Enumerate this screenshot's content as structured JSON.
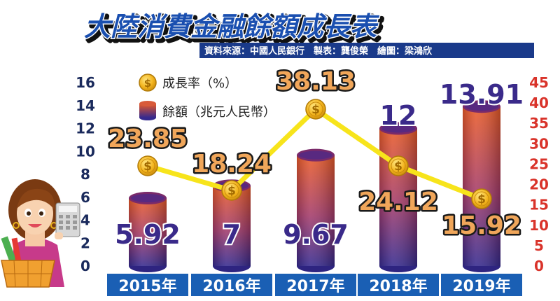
{
  "title": "大陸消費金融餘額成長表",
  "source": "資料來源：中國人民銀行　製表：龔俊榮　繪圖：梁鴻欣",
  "colors": {
    "bar_top": "#e8552a",
    "bar_bottom": "#3a2a8c",
    "line": "#f7e41b",
    "coin": "#f2b01e",
    "left_axis": "#1a2a5c",
    "right_axis": "#d9332a",
    "year_band": "#1a5fb4",
    "title": "#1a4fb0"
  },
  "chart_data": {
    "type": "bar",
    "categories": [
      "2015年",
      "2016年",
      "2017年",
      "2018年",
      "2019年"
    ],
    "left_axis": {
      "ticks": [
        "0",
        "2",
        "4",
        "6",
        "8",
        "10",
        "12",
        "14",
        "16"
      ],
      "range": [
        0,
        16
      ]
    },
    "right_axis": {
      "ticks": [
        "0",
        "5",
        "10",
        "15",
        "20",
        "25",
        "30",
        "35",
        "40",
        "45"
      ],
      "range": [
        0,
        45
      ]
    },
    "series": [
      {
        "name": "餘額（兆元人民幣）",
        "type": "bar",
        "axis": "left",
        "values": [
          5.92,
          7,
          9.67,
          12,
          13.91
        ],
        "labels": [
          "5.92",
          "7",
          "9.67",
          "12",
          "13.91"
        ]
      },
      {
        "name": "成長率（%）",
        "type": "line",
        "axis": "right",
        "values": [
          23.85,
          18.24,
          38.13,
          24.12,
          15.92
        ],
        "labels": [
          "23.85",
          "18.24",
          "38.13",
          "24.12",
          "15.92"
        ]
      }
    ],
    "legend_position": "top-left"
  }
}
